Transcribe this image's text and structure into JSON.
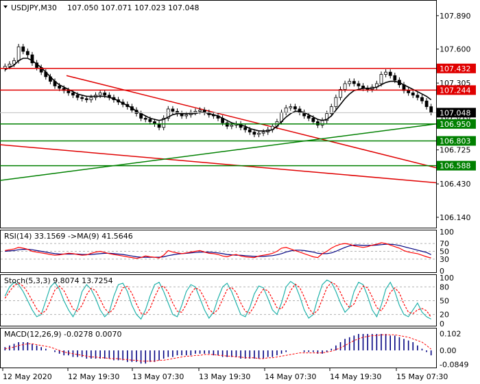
{
  "header": {
    "symbol": "USDJPY,M30",
    "ohlc": "107.050 107.071 107.023 107.048"
  },
  "chart_data": {
    "type": "candlestick",
    "price_axis": {
      "range": [
        106.05,
        108.02
      ],
      "tick_labels": [
        "107.890",
        "107.600",
        "107.305",
        "107.010",
        "106.725",
        "106.430",
        "106.140"
      ]
    },
    "current_price": "107.048",
    "levels": [
      {
        "label": "107.432",
        "value": 107.432,
        "color": "#e00000"
      },
      {
        "label": "107.244",
        "value": 107.244,
        "color": "#e00000"
      },
      {
        "label": "106.950",
        "value": 106.95,
        "color": "#008000"
      },
      {
        "label": "106.803",
        "value": 106.803,
        "color": "#008000"
      },
      {
        "label": "106.588",
        "value": 106.588,
        "color": "#008000"
      }
    ],
    "trendlines": [
      {
        "color": "#e00000",
        "from": [
          97,
          107.37
        ],
        "to": [
          636,
          106.57
        ]
      },
      {
        "color": "#e00000",
        "from": [
          0,
          106.77
        ],
        "to": [
          636,
          106.44
        ]
      },
      {
        "color": "#008000",
        "from": [
          0,
          106.46
        ],
        "to": [
          636,
          106.95
        ]
      }
    ],
    "x_axis": {
      "tick_labels": [
        "12 May 2020",
        "12 May 19:30",
        "13 May 07:30",
        "13 May 19:30",
        "14 May 07:30",
        "14 May 19:30",
        "15 May 07:30"
      ]
    },
    "close_series": [
      107.45,
      107.47,
      107.5,
      107.62,
      107.58,
      107.55,
      107.48,
      107.44,
      107.4,
      107.36,
      107.32,
      107.28,
      107.26,
      107.24,
      107.22,
      107.2,
      107.18,
      107.17,
      107.16,
      107.18,
      107.2,
      107.22,
      107.2,
      107.18,
      107.16,
      107.14,
      107.12,
      107.1,
      107.07,
      107.04,
      107.0,
      106.99,
      106.97,
      106.95,
      106.92,
      107.0,
      107.08,
      107.06,
      107.04,
      107.02,
      107.03,
      107.05,
      107.06,
      107.07,
      107.05,
      107.03,
      107.02,
      107.0,
      106.96,
      106.93,
      106.94,
      106.95,
      106.92,
      106.9,
      106.88,
      106.86,
      106.87,
      106.88,
      106.9,
      106.93,
      106.97,
      107.05,
      107.09,
      107.1,
      107.08,
      107.05,
      107.02,
      107.0,
      106.97,
      106.94,
      106.98,
      107.04,
      107.1,
      107.18,
      107.25,
      107.3,
      107.32,
      107.3,
      107.28,
      107.26,
      107.25,
      107.27,
      107.3,
      107.38,
      107.4,
      107.37,
      107.33,
      107.29,
      107.24,
      107.22,
      107.2,
      107.18,
      107.15,
      107.1,
      107.05
    ],
    "ma_series": [
      107.42,
      107.44,
      107.46,
      107.5,
      107.52,
      107.52,
      107.5,
      107.47,
      107.44,
      107.4,
      107.36,
      107.32,
      107.29,
      107.27,
      107.25,
      107.23,
      107.21,
      107.2,
      107.19,
      107.19,
      107.19,
      107.19,
      107.19,
      107.18,
      107.17,
      107.15,
      107.13,
      107.11,
      107.09,
      107.06,
      107.04,
      107.02,
      107.0,
      106.99,
      106.98,
      106.99,
      107.01,
      107.03,
      107.04,
      107.04,
      107.04,
      107.04,
      107.04,
      107.05,
      107.05,
      107.04,
      107.03,
      107.02,
      107.0,
      106.98,
      106.96,
      106.95,
      106.94,
      106.93,
      106.91,
      106.9,
      106.89,
      106.89,
      106.89,
      106.9,
      106.93,
      106.97,
      107.01,
      107.04,
      107.06,
      107.06,
      107.05,
      107.03,
      107.01,
      106.99,
      106.98,
      106.99,
      107.02,
      107.07,
      107.12,
      107.17,
      107.21,
      107.24,
      107.25,
      107.26,
      107.26,
      107.26,
      107.27,
      107.29,
      107.31,
      107.32,
      107.32,
      107.31,
      107.29,
      107.27,
      107.25,
      107.23,
      107.21,
      107.19,
      107.16
    ],
    "rsi": {
      "label": "RSI(14) 33.1569  ->MA(9) 41.5646",
      "range": [
        0,
        100
      ],
      "tick_labels": [
        "100",
        "70",
        "50",
        "30",
        "0"
      ],
      "levels": [
        70,
        50,
        30
      ],
      "rsi_series": [
        52,
        54,
        56,
        60,
        58,
        55,
        50,
        48,
        46,
        44,
        42,
        40,
        41,
        43,
        45,
        44,
        42,
        40,
        41,
        45,
        48,
        50,
        47,
        44,
        42,
        40,
        38,
        36,
        34,
        32,
        34,
        38,
        36,
        35,
        33,
        40,
        52,
        48,
        46,
        44,
        46,
        48,
        50,
        52,
        48,
        45,
        44,
        42,
        38,
        36,
        40,
        42,
        38,
        36,
        35,
        34,
        38,
        40,
        42,
        45,
        50,
        58,
        60,
        56,
        52,
        48,
        44,
        40,
        36,
        34,
        44,
        50,
        58,
        64,
        68,
        70,
        68,
        64,
        62,
        60,
        62,
        66,
        68,
        72,
        70,
        66,
        62,
        58,
        52,
        48,
        46,
        44,
        40,
        36,
        33
      ],
      "ma_series": [
        50,
        51,
        52,
        54,
        55,
        55,
        54,
        52,
        50,
        48,
        46,
        44,
        43,
        43,
        43,
        43,
        43,
        42,
        42,
        42,
        43,
        44,
        45,
        45,
        44,
        43,
        42,
        40,
        38,
        36,
        35,
        35,
        35,
        35,
        35,
        36,
        39,
        41,
        43,
        44,
        45,
        46,
        47,
        48,
        48,
        48,
        47,
        46,
        44,
        42,
        41,
        40,
        40,
        39,
        38,
        37,
        37,
        37,
        38,
        39,
        41,
        44,
        48,
        51,
        53,
        53,
        52,
        50,
        48,
        45,
        44,
        44,
        46,
        50,
        55,
        60,
        64,
        66,
        66,
        65,
        65,
        65,
        66,
        67,
        68,
        68,
        67,
        65,
        62,
        59,
        56,
        53,
        50,
        47,
        41.56
      ]
    },
    "stoch": {
      "label": "Stoch(5,3,3) 9.8074 13.7254",
      "range": [
        0,
        100
      ],
      "tick_labels": [
        "100",
        "80",
        "50",
        "20",
        "0"
      ],
      "levels": [
        80,
        50,
        20
      ],
      "k_series": [
        60,
        80,
        90,
        85,
        70,
        50,
        30,
        15,
        20,
        50,
        80,
        90,
        75,
        50,
        30,
        15,
        35,
        70,
        85,
        75,
        55,
        30,
        15,
        25,
        60,
        85,
        88,
        70,
        40,
        20,
        10,
        30,
        60,
        85,
        90,
        70,
        45,
        20,
        15,
        40,
        70,
        85,
        80,
        55,
        30,
        12,
        25,
        55,
        80,
        88,
        70,
        45,
        20,
        15,
        35,
        65,
        82,
        78,
        55,
        30,
        20,
        45,
        80,
        92,
        85,
        60,
        30,
        12,
        20,
        55,
        85,
        95,
        90,
        70,
        45,
        25,
        35,
        70,
        90,
        85,
        60,
        30,
        15,
        40,
        75,
        90,
        70,
        40,
        20,
        15,
        30,
        45,
        25,
        15,
        9.8
      ],
      "d_series": [
        55,
        70,
        83,
        88,
        82,
        68,
        50,
        32,
        22,
        28,
        50,
        73,
        82,
        72,
        52,
        32,
        27,
        40,
        63,
        77,
        72,
        53,
        33,
        23,
        33,
        57,
        78,
        81,
        66,
        43,
        23,
        20,
        33,
        58,
        78,
        82,
        68,
        45,
        27,
        25,
        42,
        65,
        78,
        73,
        55,
        32,
        22,
        31,
        53,
        74,
        79,
        68,
        45,
        27,
        23,
        38,
        61,
        75,
        72,
        54,
        35,
        32,
        48,
        72,
        86,
        79,
        58,
        34,
        21,
        29,
        53,
        78,
        90,
        85,
        68,
        47,
        35,
        43,
        65,
        82,
        78,
        58,
        35,
        28,
        43,
        68,
        78,
        67,
        43,
        25,
        22,
        30,
        33,
        28,
        13.7
      ]
    },
    "macd": {
      "label": "MACD(12,26,9) -0.0278 0.0070",
      "tick_labels": [
        "0.102",
        "0.00",
        "-0.0849"
      ],
      "range": [
        -0.1,
        0.125
      ],
      "hist_series": [
        0.02,
        0.03,
        0.04,
        0.05,
        0.05,
        0.05,
        0.04,
        0.03,
        0.02,
        0.01,
        0.0,
        -0.01,
        -0.02,
        -0.03,
        -0.03,
        -0.04,
        -0.04,
        -0.04,
        -0.05,
        -0.05,
        -0.05,
        -0.05,
        -0.05,
        -0.05,
        -0.06,
        -0.06,
        -0.06,
        -0.07,
        -0.07,
        -0.07,
        -0.08,
        -0.08,
        -0.07,
        -0.07,
        -0.06,
        -0.05,
        -0.04,
        -0.04,
        -0.03,
        -0.03,
        -0.03,
        -0.03,
        -0.02,
        -0.02,
        -0.02,
        -0.02,
        -0.03,
        -0.03,
        -0.04,
        -0.04,
        -0.04,
        -0.04,
        -0.05,
        -0.05,
        -0.05,
        -0.05,
        -0.05,
        -0.05,
        -0.04,
        -0.04,
        -0.03,
        -0.02,
        -0.01,
        0.0,
        0.0,
        0.0,
        -0.01,
        -0.01,
        -0.01,
        -0.02,
        -0.02,
        -0.01,
        0.01,
        0.03,
        0.05,
        0.07,
        0.08,
        0.09,
        0.1,
        0.1,
        0.1,
        0.1,
        0.1,
        0.1,
        0.1,
        0.09,
        0.09,
        0.08,
        0.07,
        0.06,
        0.05,
        0.03,
        0.01,
        -0.01,
        -0.03
      ],
      "signal_series": [
        0.01,
        0.015,
        0.02,
        0.03,
        0.035,
        0.04,
        0.04,
        0.035,
        0.03,
        0.025,
        0.02,
        0.01,
        0.0,
        -0.01,
        -0.015,
        -0.02,
        -0.025,
        -0.03,
        -0.035,
        -0.04,
        -0.04,
        -0.045,
        -0.045,
        -0.05,
        -0.05,
        -0.05,
        -0.055,
        -0.055,
        -0.06,
        -0.06,
        -0.065,
        -0.065,
        -0.065,
        -0.065,
        -0.06,
        -0.06,
        -0.055,
        -0.05,
        -0.045,
        -0.04,
        -0.035,
        -0.035,
        -0.03,
        -0.03,
        -0.025,
        -0.025,
        -0.025,
        -0.03,
        -0.03,
        -0.035,
        -0.035,
        -0.04,
        -0.04,
        -0.045,
        -0.045,
        -0.045,
        -0.05,
        -0.05,
        -0.045,
        -0.045,
        -0.04,
        -0.035,
        -0.03,
        -0.025,
        -0.02,
        -0.015,
        -0.015,
        -0.015,
        -0.015,
        -0.015,
        -0.015,
        -0.01,
        -0.005,
        0.005,
        0.015,
        0.03,
        0.045,
        0.06,
        0.07,
        0.08,
        0.085,
        0.09,
        0.09,
        0.095,
        0.095,
        0.095,
        0.095,
        0.09,
        0.085,
        0.08,
        0.07,
        0.06,
        0.05,
        0.03,
        0.007
      ]
    }
  }
}
